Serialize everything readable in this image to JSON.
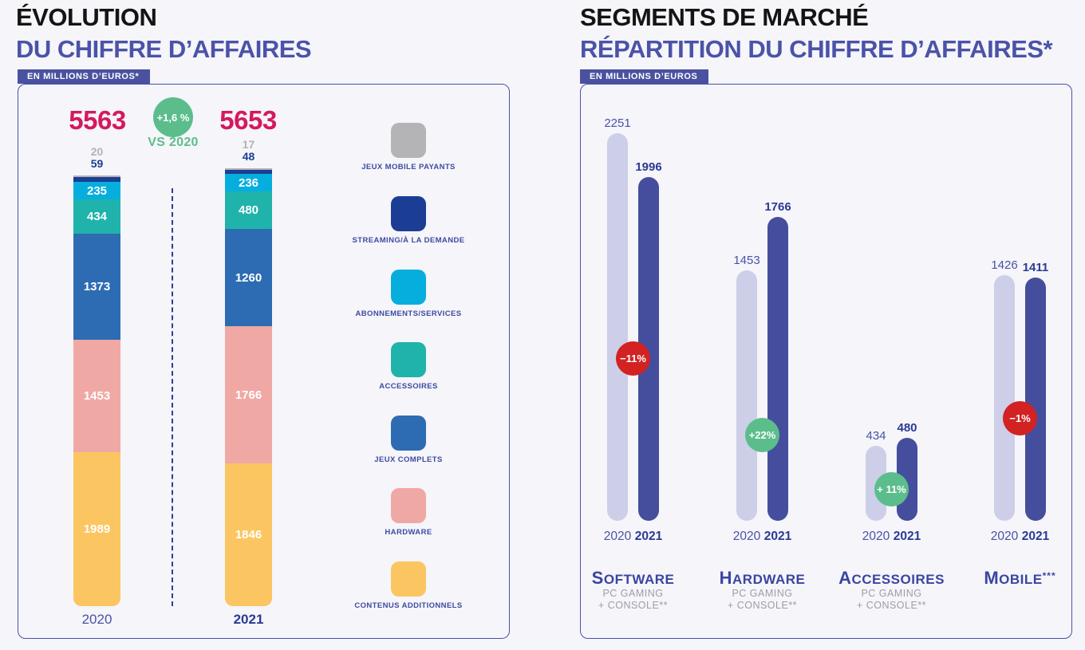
{
  "page": {
    "background": "#f5f5fa"
  },
  "left_section": {
    "title_line1": "ÉVOLUTION",
    "title_line2": "DU CHIFFRE D’AFFAIRES",
    "unit_badge": "EN MILLIONS D’EUROS*"
  },
  "right_section": {
    "title_line1": "SEGMENTS DE MARCHÉ",
    "title_line2": "RÉPARTITION DU CHIFFRE D’AFFAIRES*",
    "unit_badge": "EN MILLIONS D’EUROS"
  },
  "chart_data": [
    {
      "type": "bar",
      "variant": "stacked-column",
      "title": "ÉVOLUTION DU CHIFFRE D’AFFAIRES",
      "unit": "millions d'euros",
      "categories": [
        "2020",
        "2021"
      ],
      "totals": {
        "y2020": "5563",
        "y2021": "5653"
      },
      "change_badge": {
        "label": "+1,6 %",
        "sublabel": "VS 2020",
        "type": "positive",
        "color": "#5cbd8c"
      },
      "series": [
        {
          "name": "JEUX MOBILE PAYANTS",
          "color": "#b4b4b6",
          "values": [
            20,
            17
          ]
        },
        {
          "name": "STREAMING/À LA DEMANDE",
          "color": "#1b3e94",
          "values": [
            59,
            48
          ]
        },
        {
          "name": "ABONNEMENTS/SERVICES",
          "color": "#06aedd",
          "values": [
            235,
            236
          ]
        },
        {
          "name": "ACCESSOIRES",
          "color": "#20b3ac",
          "values": [
            434,
            480
          ]
        },
        {
          "name": "JEUX COMPLETS",
          "color": "#2d6cb3",
          "values": [
            1373,
            1260
          ]
        },
        {
          "name": "HARDWARE",
          "color": "#f0a8a4",
          "values": [
            1453,
            1766
          ]
        },
        {
          "name": "CONTENUS ADDITIONNELS",
          "color": "#fbc661",
          "values": [
            1989,
            1846
          ]
        }
      ],
      "legend_position": "right",
      "axis": "none"
    },
    {
      "type": "bar",
      "variant": "grouped-column",
      "title": "SEGMENTS DE MARCHÉ — RÉPARTITION DU CHIFFRE D’AFFAIRES*",
      "unit": "millions d'euros",
      "years": [
        "2020",
        "2021"
      ],
      "bar_colors": {
        "y2020": "#cdcfe8",
        "y2021": "#454e9c"
      },
      "badge_colors": {
        "positive": "#5cbd8c",
        "negative": "#d22222"
      },
      "groups": [
        {
          "label": "SOFTWARE",
          "suffix": "",
          "sublabel": [
            "PC GAMING",
            "+ CONSOLE**"
          ],
          "values": [
            2251,
            1996
          ],
          "change": "−11%",
          "change_type": "negative"
        },
        {
          "label": "HARDWARE",
          "suffix": "",
          "sublabel": [
            "PC GAMING",
            "+ CONSOLE**"
          ],
          "values": [
            1453,
            1766
          ],
          "change": "+22%",
          "change_type": "positive"
        },
        {
          "label": "ACCESSOIRES",
          "suffix": "",
          "sublabel": [
            "PC GAMING",
            "+ CONSOLE**"
          ],
          "values": [
            434,
            480
          ],
          "change": "+ 11%",
          "change_type": "positive"
        },
        {
          "label": "MOBILE",
          "suffix": "***",
          "sublabel": [],
          "values": [
            1426,
            1411
          ],
          "change": "−1%",
          "change_type": "negative"
        }
      ]
    }
  ]
}
